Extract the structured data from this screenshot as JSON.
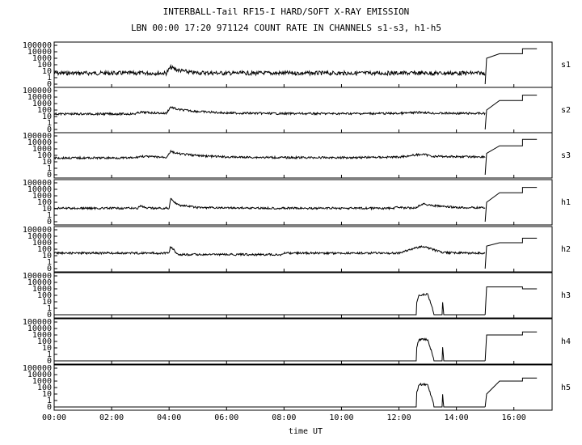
{
  "chart_data": {
    "type": "line",
    "title": "INTERBALL-Tail RF15-I HARD/SOFT X-RAY EMISSION",
    "subtitle": "LBN 00:00 17:20 971124  COUNT RATE IN CHANNELS s1-s3, h1-h5",
    "xlabel": "time UT",
    "x_ticks": [
      "00:00",
      "02:00",
      "04:00",
      "06:00",
      "08:00",
      "10:00",
      "12:00",
      "14:00",
      "16:00"
    ],
    "x_range_hours": [
      0,
      17.33
    ],
    "y_scale": "log",
    "y_ticks": [
      "100000",
      "10000",
      "1000",
      "100",
      "10",
      "1",
      "0"
    ],
    "grid": false,
    "series": [
      {
        "name": "s1",
        "points": [
          [
            0,
            5
          ],
          [
            3.9,
            5
          ],
          [
            4.05,
            40
          ],
          [
            4.3,
            15
          ],
          [
            4.8,
            6
          ],
          [
            6,
            5
          ],
          [
            8,
            5
          ],
          [
            10,
            5
          ],
          [
            12,
            5
          ],
          [
            13,
            5
          ],
          [
            14,
            5
          ],
          [
            15,
            5
          ]
        ],
        "step": [
          [
            15.05,
            1000
          ],
          [
            15.5,
            5000
          ],
          [
            16.3,
            5000
          ],
          [
            16.3,
            30000
          ],
          [
            16.8,
            30000
          ]
        ]
      },
      {
        "name": "s2",
        "points": [
          [
            0,
            25
          ],
          [
            2.8,
            25
          ],
          [
            3,
            45
          ],
          [
            3.9,
            30
          ],
          [
            4.05,
            300
          ],
          [
            4.3,
            120
          ],
          [
            5,
            60
          ],
          [
            6,
            35
          ],
          [
            8,
            28
          ],
          [
            10,
            28
          ],
          [
            12,
            30
          ],
          [
            12.8,
            45
          ],
          [
            13.2,
            32
          ],
          [
            14.5,
            30
          ],
          [
            15,
            30
          ]
        ],
        "step": [
          [
            15.05,
            100
          ],
          [
            15.5,
            3000
          ],
          [
            16.3,
            3000
          ],
          [
            16.3,
            20000
          ],
          [
            16.8,
            20000
          ]
        ]
      },
      {
        "name": "s3",
        "points": [
          [
            0,
            40
          ],
          [
            2.8,
            40
          ],
          [
            3,
            70
          ],
          [
            3.9,
            50
          ],
          [
            4.05,
            400
          ],
          [
            4.3,
            180
          ],
          [
            5,
            90
          ],
          [
            6,
            55
          ],
          [
            8,
            45
          ],
          [
            10,
            45
          ],
          [
            12,
            55
          ],
          [
            12.8,
            150
          ],
          [
            13.2,
            70
          ],
          [
            14.5,
            60
          ],
          [
            15,
            60
          ]
        ],
        "step": [
          [
            15.05,
            200
          ],
          [
            15.5,
            3000
          ],
          [
            16.3,
            3000
          ],
          [
            16.3,
            30000
          ],
          [
            16.8,
            30000
          ]
        ]
      },
      {
        "name": "h1",
        "points": [
          [
            0,
            12
          ],
          [
            2.9,
            12
          ],
          [
            3,
            30
          ],
          [
            3.2,
            12
          ],
          [
            4,
            12
          ],
          [
            4.05,
            400
          ],
          [
            4.3,
            40
          ],
          [
            5,
            15
          ],
          [
            8,
            12
          ],
          [
            10,
            12
          ],
          [
            11.8,
            12
          ],
          [
            12,
            20
          ],
          [
            12.2,
            12
          ],
          [
            12.6,
            15
          ],
          [
            12.8,
            60
          ],
          [
            13.2,
            30
          ],
          [
            14,
            15
          ],
          [
            14.8,
            15
          ],
          [
            15,
            15
          ]
        ],
        "step": [
          [
            15.05,
            100
          ],
          [
            15.5,
            3000
          ],
          [
            16.3,
            3000
          ],
          [
            16.3,
            20000
          ],
          [
            16.8,
            20000
          ]
        ]
      },
      {
        "name": "h2",
        "points": [
          [
            0,
            25
          ],
          [
            4,
            25
          ],
          [
            4.05,
            300
          ],
          [
            4.3,
            15
          ],
          [
            8,
            15
          ],
          [
            8,
            25
          ],
          [
            12,
            25
          ],
          [
            12.8,
            300
          ],
          [
            13.5,
            30
          ],
          [
            14.5,
            25
          ],
          [
            15,
            25
          ]
        ],
        "step": [
          [
            15.05,
            300
          ],
          [
            15.5,
            1000
          ],
          [
            16.3,
            1000
          ],
          [
            16.3,
            5000
          ],
          [
            16.8,
            5000
          ]
        ]
      },
      {
        "name": "h3",
        "points": [
          [
            0,
            0
          ],
          [
            12.5,
            0
          ],
          [
            12.7,
            100
          ],
          [
            13.0,
            150
          ],
          [
            13.2,
            0
          ],
          [
            13.5,
            0
          ],
          [
            13.5,
            50
          ],
          [
            13.55,
            0
          ],
          [
            15,
            0
          ]
        ],
        "step": [
          [
            15.05,
            2000
          ],
          [
            15.5,
            2000
          ],
          [
            16.3,
            2000
          ],
          [
            16.3,
            1000
          ],
          [
            16.8,
            1000
          ]
        ]
      },
      {
        "name": "h4",
        "points": [
          [
            0,
            0
          ],
          [
            12.5,
            0
          ],
          [
            12.7,
            200
          ],
          [
            13.0,
            200
          ],
          [
            13.2,
            0
          ],
          [
            13.5,
            0
          ],
          [
            13.5,
            100
          ],
          [
            13.55,
            0
          ],
          [
            15,
            0
          ]
        ],
        "step": [
          [
            15.05,
            1000
          ],
          [
            15.5,
            1000
          ],
          [
            16.3,
            1000
          ],
          [
            16.3,
            3000
          ],
          [
            16.8,
            3000
          ]
        ]
      },
      {
        "name": "h5",
        "points": [
          [
            0,
            0
          ],
          [
            12.5,
            0
          ],
          [
            12.7,
            300
          ],
          [
            13.0,
            300
          ],
          [
            13.2,
            0
          ],
          [
            13.5,
            0
          ],
          [
            13.5,
            100
          ],
          [
            13.55,
            0
          ],
          [
            15,
            0
          ]
        ],
        "step": [
          [
            15.05,
            10
          ],
          [
            15.5,
            1000
          ],
          [
            16.3,
            1000
          ],
          [
            16.3,
            3000
          ],
          [
            16.8,
            3000
          ]
        ]
      }
    ]
  }
}
